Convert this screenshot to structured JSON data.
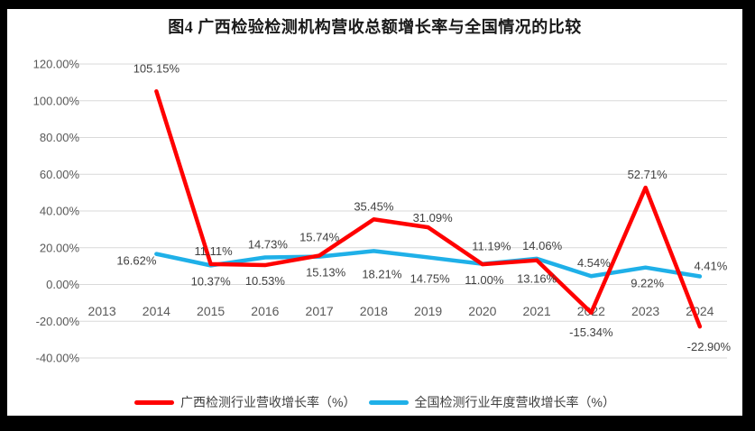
{
  "title": "图4 广西检验检测机构营收总额增长率与全国情况的比较",
  "colors": {
    "page_background": "#FFFFFF",
    "frame_background": "#000000",
    "gridline": "#D9D9D9",
    "axis_text": "#595959",
    "data_label_text": "#404040",
    "title_text": "#1A1A1A",
    "series_guangxi": "#FF0000",
    "series_national": "#1FB0E8"
  },
  "chart_data": {
    "type": "line",
    "title": "图4 广西检验检测机构营收总额增长率与全国情况的比较",
    "categories": [
      "2013",
      "2014",
      "2015",
      "2016",
      "2017",
      "2018",
      "2019",
      "2020",
      "2021",
      "2022",
      "2023",
      "2024"
    ],
    "ylim": [
      -40,
      120
    ],
    "ytick_step": 20,
    "y_tick_labels": [
      "120.00%",
      "100.00%",
      "80.00%",
      "60.00%",
      "40.00%",
      "20.00%",
      "0.00%",
      "-20.00%",
      "-40.00%"
    ],
    "grid": "horizontal",
    "legend_position": "bottom",
    "data_labels": true,
    "series": [
      {
        "name": "广西检测行业营收增长率（%）",
        "color": "#FF0000",
        "years": [
          2014,
          2015,
          2016,
          2017,
          2018,
          2019,
          2020,
          2021,
          2022,
          2023,
          2024
        ],
        "values": [
          105.15,
          11.11,
          10.53,
          15.74,
          35.45,
          31.09,
          11.0,
          13.16,
          -15.34,
          52.71,
          -22.9
        ],
        "labels": [
          "105.15%",
          "11.11%",
          "10.53%",
          "15.74%",
          "35.45%",
          "31.09%",
          "11.00%",
          "13.16%",
          "-15.34%",
          "52.71%",
          "-22.90%"
        ]
      },
      {
        "name": "全国检测行业年度营收增长率（%）",
        "color": "#1FB0E8",
        "years": [
          2014,
          2015,
          2016,
          2017,
          2018,
          2019,
          2020,
          2021,
          2022,
          2023,
          2024
        ],
        "values": [
          16.62,
          10.37,
          14.73,
          15.13,
          18.21,
          14.75,
          11.19,
          14.06,
          4.54,
          9.22,
          4.41
        ],
        "labels": [
          "16.62%",
          "10.37%",
          "14.73%",
          "15.13%",
          "18.21%",
          "14.75%",
          "11.19%",
          "14.06%",
          "4.54%",
          "9.22%",
          "4.41%"
        ]
      }
    ]
  }
}
